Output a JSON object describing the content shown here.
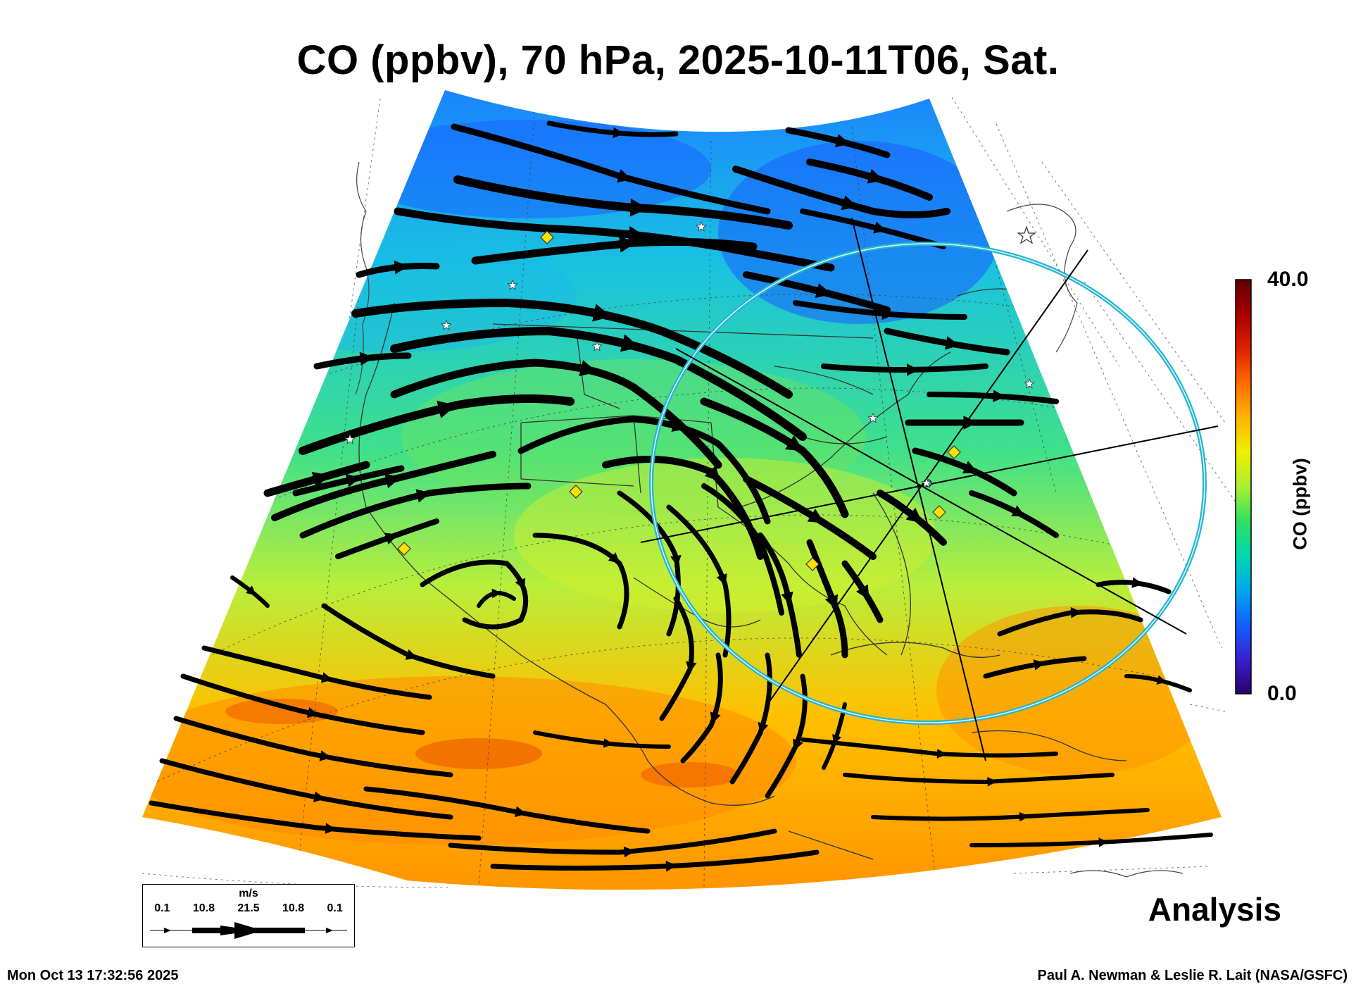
{
  "header": {
    "title": "CO (ppbv), 70 hPa, 2025-10-11T06, Sat."
  },
  "colorbar": {
    "max_label": "40.0",
    "min_label": "0.0",
    "unit_label": "CO (ppbv)",
    "colors": [
      "#2a006e",
      "#3a1fd0",
      "#1060ff",
      "#00a8f0",
      "#00d8b0",
      "#30e060",
      "#a8f030",
      "#f0f000",
      "#ffb400",
      "#ff6c00",
      "#e02000",
      "#a80000",
      "#600000"
    ]
  },
  "wind_legend": {
    "unit": "m/s",
    "values": [
      "0.1",
      "10.8",
      "21.5",
      "10.8",
      "0.1"
    ]
  },
  "footer": {
    "label": "Analysis",
    "timestamp": "Mon Oct 13 17:32:56 2025",
    "credit": "Paul A. Newman & Leslie R. Lait (NASA/GSFC)"
  },
  "map": {
    "field_colors": {
      "north": "#1b84ff",
      "mid_north": "#19c3e0",
      "middle": "#3fe08a",
      "mid_south": "#b9ee3a",
      "south": "#ffc000",
      "far_south": "#ff9500"
    },
    "streamline_color": "#000000",
    "ring_color": "#26b4d2",
    "star_marker_color": "#ffffff",
    "diamond_marker_color": "#ffe000"
  }
}
